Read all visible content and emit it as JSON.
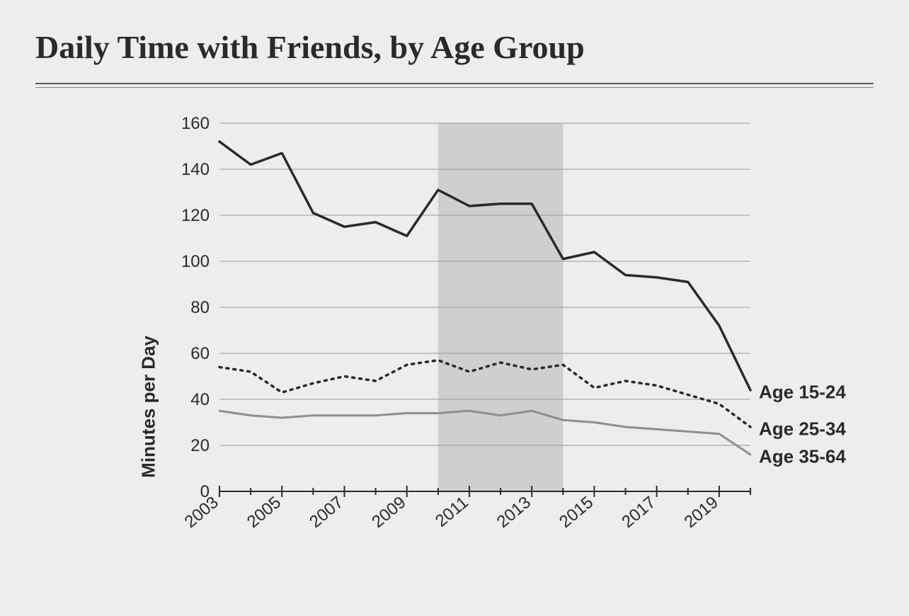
{
  "title": "Daily Time with Friends, by Age Group",
  "chart": {
    "type": "line",
    "background_color": "#efeced",
    "grid_color": "#9a9a9a",
    "axis_color": "#2a2a2a",
    "shaded_band": {
      "x_start": 2010,
      "x_end": 2014,
      "color": "#cfcfcf"
    },
    "ylabel": "Minutes per Day",
    "ylabel_fontsize": 26,
    "ylim": [
      0,
      160
    ],
    "ytick_step": 20,
    "yticks": [
      0,
      20,
      40,
      60,
      80,
      100,
      120,
      140,
      160
    ],
    "xlim": [
      2003,
      2020
    ],
    "xticks_major": [
      2003,
      2005,
      2007,
      2009,
      2011,
      2013,
      2015,
      2017,
      2019
    ],
    "xticks_minor": [
      2004,
      2006,
      2008,
      2010,
      2012,
      2014,
      2016,
      2018,
      2020
    ],
    "tick_fontsize": 24,
    "label_fontsize": 26,
    "series": [
      {
        "name": "Age 15-24",
        "label": "Age 15-24",
        "color": "#2a2a2a",
        "line_width": 3.5,
        "dash": null,
        "x": [
          2003,
          2004,
          2005,
          2006,
          2007,
          2008,
          2009,
          2010,
          2011,
          2012,
          2013,
          2014,
          2015,
          2016,
          2017,
          2018,
          2019,
          2020
        ],
        "y": [
          152,
          142,
          147,
          121,
          115,
          117,
          111,
          131,
          124,
          125,
          125,
          101,
          104,
          94,
          93,
          91,
          72,
          44
        ],
        "label_y": 43
      },
      {
        "name": "Age 25-34",
        "label": "Age 25-34",
        "color": "#2a2a2a",
        "line_width": 3.5,
        "dash": "3 7",
        "x": [
          2003,
          2004,
          2005,
          2006,
          2007,
          2008,
          2009,
          2010,
          2011,
          2012,
          2013,
          2014,
          2015,
          2016,
          2017,
          2018,
          2019,
          2020
        ],
        "y": [
          54,
          52,
          43,
          47,
          50,
          48,
          55,
          57,
          52,
          56,
          53,
          55,
          45,
          48,
          46,
          42,
          38,
          28
        ],
        "label_y": 27
      },
      {
        "name": "Age 35-64",
        "label": "Age 35-64",
        "color": "#8f8f8f",
        "line_width": 3,
        "dash": null,
        "x": [
          2003,
          2004,
          2005,
          2006,
          2007,
          2008,
          2009,
          2010,
          2011,
          2012,
          2013,
          2014,
          2015,
          2016,
          2017,
          2018,
          2019,
          2020
        ],
        "y": [
          35,
          33,
          32,
          33,
          33,
          33,
          34,
          34,
          35,
          33,
          35,
          31,
          30,
          28,
          27,
          26,
          25,
          16
        ],
        "label_y": 15
      }
    ]
  }
}
